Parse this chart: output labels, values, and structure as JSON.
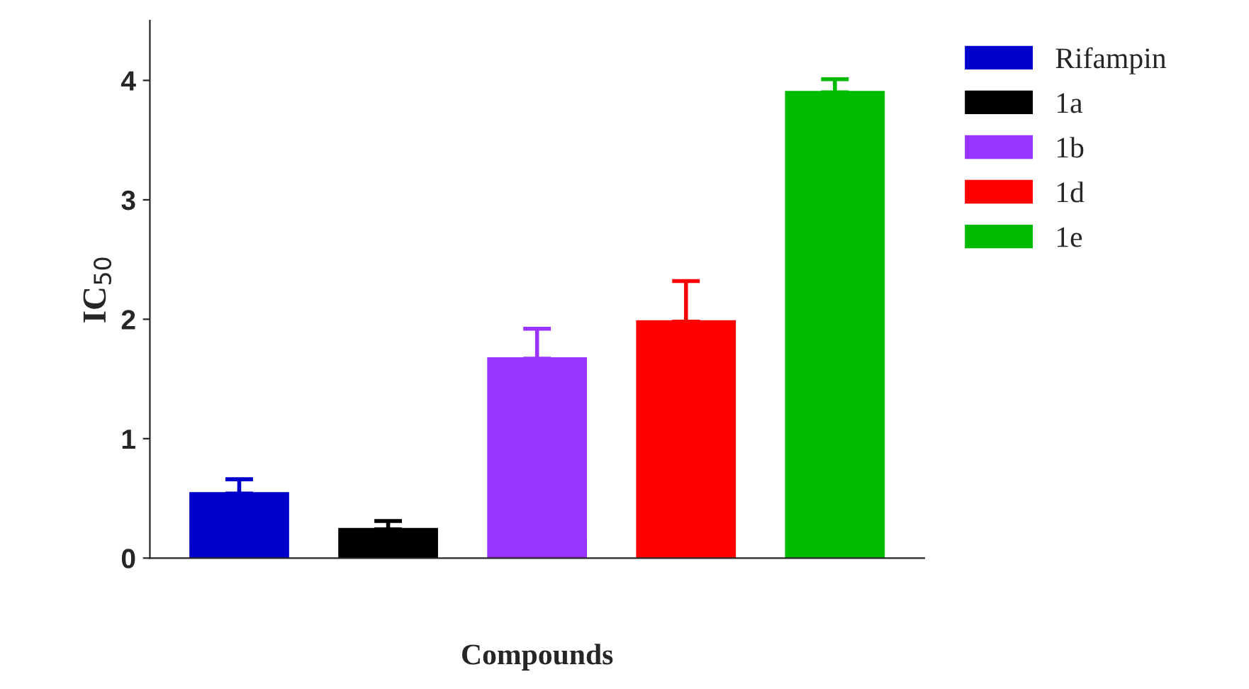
{
  "chart_data": {
    "type": "bar",
    "xlabel": "Compounds",
    "ylabel": "IC$_{50}$",
    "categories": [
      null,
      null,
      null,
      null,
      null
    ],
    "series": [
      {
        "name": "Rifampin",
        "color": "#0000cc",
        "values": [
          0.54,
          null,
          null,
          null,
          null
        ],
        "errors": [
          0.12,
          null,
          null,
          null,
          null
        ]
      },
      {
        "name": "1a",
        "color": "#000000",
        "values": [
          null,
          0.24,
          null,
          null,
          null
        ],
        "errors": [
          null,
          0.07,
          null,
          null,
          null
        ]
      },
      {
        "name": "1b",
        "color": "#9933ff",
        "values": [
          null,
          null,
          1.67,
          null,
          null
        ],
        "errors": [
          null,
          null,
          0.25,
          null,
          null
        ]
      },
      {
        "name": "1d",
        "color": "#ff0000",
        "values": [
          null,
          null,
          null,
          1.98,
          null
        ],
        "errors": [
          null,
          null,
          null,
          0.34,
          null
        ]
      },
      {
        "name": "1e",
        "color": "#00bb00",
        "values": [
          null,
          null,
          null,
          null,
          3.9
        ],
        "errors": [
          null,
          null,
          null,
          null,
          0.11
        ]
      }
    ],
    "ylim": [
      0,
      4.5
    ],
    "yticks": [
      0,
      1,
      2,
      3,
      4
    ],
    "grid": false,
    "legend": "right"
  }
}
